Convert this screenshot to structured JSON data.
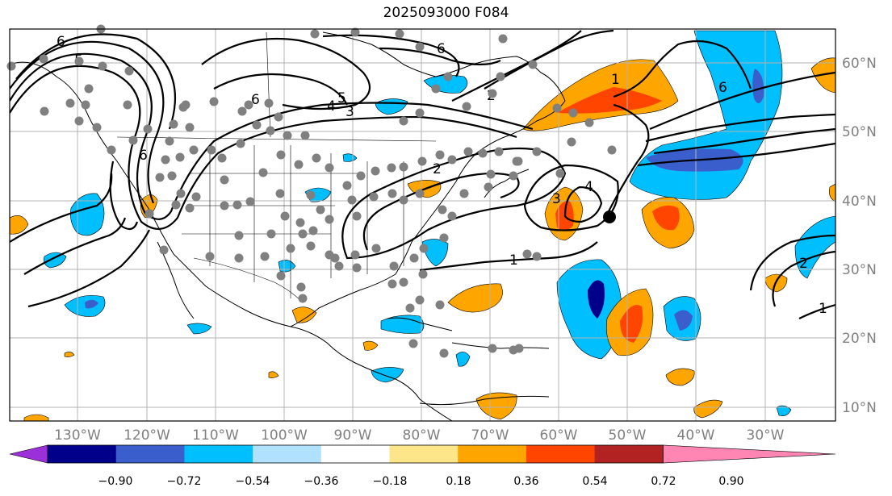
{
  "title": "2025093000 F084",
  "lon_labels": [
    "130°W",
    "120°W",
    "110°W",
    "100°W",
    "90°W",
    "80°W",
    "70°W",
    "60°W",
    "50°W",
    "40°W",
    "30°W"
  ],
  "lat_labels": [
    "60°N",
    "50°N",
    "40°N",
    "30°N",
    "20°N",
    "10°N"
  ],
  "colorbar": {
    "ticks": [
      "−0.90",
      "−0.72",
      "−0.54",
      "−0.36",
      "−0.18",
      "0.18",
      "0.36",
      "0.54",
      "0.72",
      "0.90"
    ],
    "colors": [
      "#9b30d8",
      "#00008b",
      "#3a5fcd",
      "#00bfff",
      "#b0e2ff",
      "#ffffff",
      "#fde68a",
      "#ffa500",
      "#ff4500",
      "#b22222",
      "#ff85b3"
    ]
  },
  "contour_labels": [
    "6",
    "5",
    "4",
    "3",
    "2",
    "1"
  ],
  "colors": {
    "grid": "#b3b3b3",
    "contour": "#000000",
    "marker": "#808080",
    "center": "#000000"
  }
}
